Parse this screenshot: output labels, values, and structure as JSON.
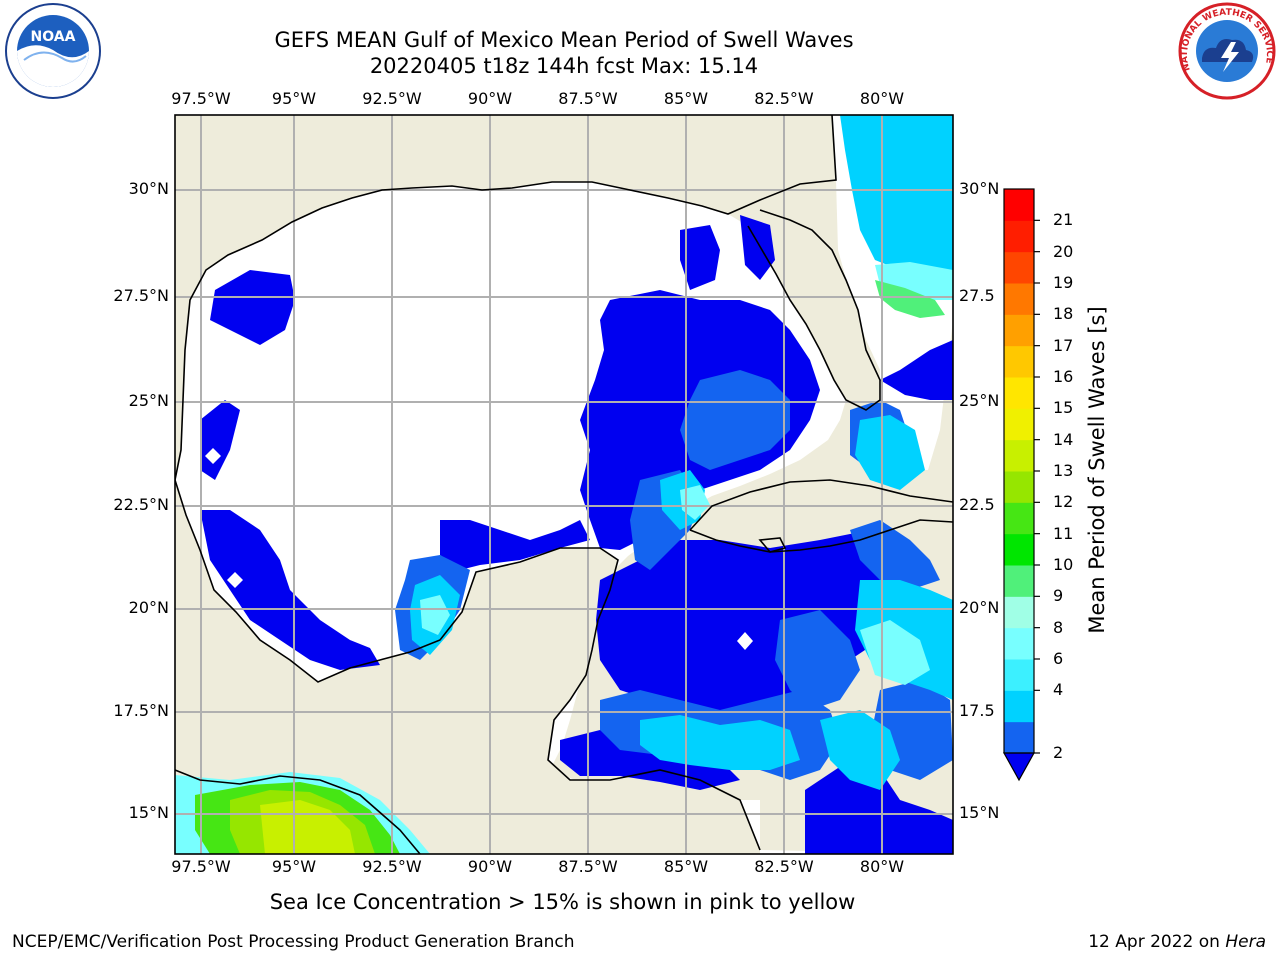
{
  "header": {
    "title_line1": "GEFS MEAN Gulf of Mexico Mean Period of Swell Waves",
    "title_line2": "20220405 t18z 144h fcst   Max: 15.14"
  },
  "logos": {
    "left": {
      "icon": "noaa-logo-icon",
      "text": "NOAA"
    },
    "right": {
      "icon": "national-weather-service-logo-icon",
      "text": "NATIONAL WEATHER SERVICE"
    }
  },
  "map": {
    "lon_labels": [
      "97.5°W",
      "95°W",
      "92.5°W",
      "90°W",
      "87.5°W",
      "85°W",
      "82.5°W",
      "80°W"
    ],
    "lat_labels_left": [
      "30°N",
      "27.5°N",
      "25°N",
      "22.5°N",
      "20°N",
      "17.5°N",
      "15°N"
    ],
    "lat_labels_right": [
      "30°N",
      "27.5",
      "25°N",
      "22.5",
      "20°N",
      "17.5",
      "15°N"
    ],
    "colors": {
      "land": "#eeecdb",
      "ice_area": "#ffffff",
      "grid": "#b0b0b0",
      "coast": "#000000"
    }
  },
  "colorbar": {
    "label": "Mean Period of Swell Waves [s]",
    "tick_labels": [
      "2",
      "4",
      "6",
      "8",
      "9",
      "10",
      "11",
      "12",
      "13",
      "14",
      "15",
      "16",
      "17",
      "18",
      "19",
      "20",
      "21"
    ],
    "colors": [
      "#1464f0",
      "#00d2ff",
      "#3cf0ff",
      "#78ffff",
      "#a0ffe6",
      "#50f07a",
      "#00e600",
      "#46e614",
      "#96e600",
      "#c8f000",
      "#f0f000",
      "#ffe600",
      "#ffc800",
      "#ffa000",
      "#ff7800",
      "#ff4600",
      "#ff1e00",
      "#ff0000"
    ],
    "extend_color": "#0000f0"
  },
  "caption": "Sea Ice Concentration > 15% is shown in pink to yellow",
  "footer": {
    "left": "NCEP/EMC/Verification Post Processing Product Generation Branch",
    "date": "12 Apr 2022 on ",
    "host": "Hera"
  }
}
